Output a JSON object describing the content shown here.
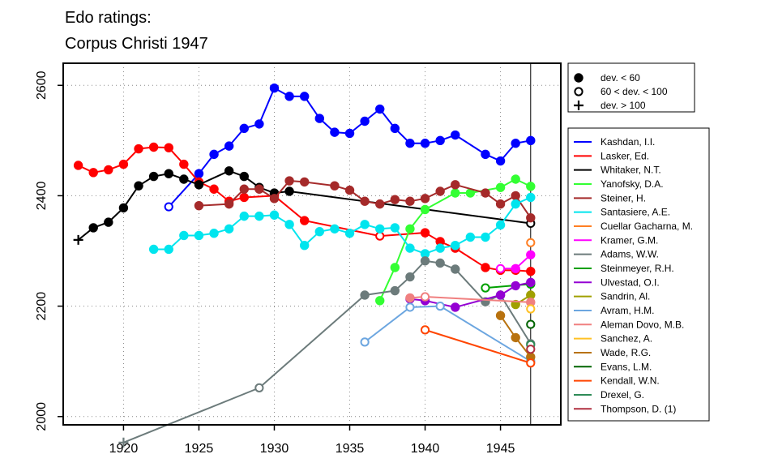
{
  "chart_data": {
    "type": "line",
    "title": [
      "Edo ratings:",
      "Corpus Christi 1947"
    ],
    "xlabel": "",
    "ylabel": "",
    "xlim": [
      1916,
      1949
    ],
    "ylim": [
      1985,
      2640
    ],
    "x_ticks": [
      1920,
      1925,
      1930,
      1935,
      1940,
      1945
    ],
    "y_ticks": [
      2000,
      2200,
      2400,
      2600
    ],
    "grid": true,
    "reference_line_x": 1947,
    "legend_placement": "right",
    "marker_legend": [
      {
        "marker": "filled",
        "label": "dev. < 60"
      },
      {
        "marker": "open",
        "label": "60 < dev. < 100"
      },
      {
        "marker": "plus",
        "label": "dev. > 100"
      }
    ],
    "series": [
      {
        "name": "Kashdan, I.I.",
        "color": "#0000ff",
        "points": [
          [
            1923,
            2380,
            "o"
          ],
          [
            1925,
            2440,
            "f"
          ],
          [
            1926,
            2475,
            "f"
          ],
          [
            1927,
            2490,
            "f"
          ],
          [
            1928,
            2522,
            "f"
          ],
          [
            1929,
            2530,
            "f"
          ],
          [
            1930,
            2595,
            "f"
          ],
          [
            1931,
            2580,
            "f"
          ],
          [
            1932,
            2580,
            "f"
          ],
          [
            1933,
            2540,
            "f"
          ],
          [
            1934,
            2515,
            "f"
          ],
          [
            1935,
            2513,
            "f"
          ],
          [
            1936,
            2535,
            "f"
          ],
          [
            1937,
            2557,
            "f"
          ],
          [
            1938,
            2522,
            "f"
          ],
          [
            1939,
            2495,
            "f"
          ],
          [
            1940,
            2495,
            "f"
          ],
          [
            1941,
            2500,
            "f"
          ],
          [
            1942,
            2510,
            "f"
          ],
          [
            1944,
            2475,
            "f"
          ],
          [
            1945,
            2463,
            "f"
          ],
          [
            1946,
            2495,
            "f"
          ],
          [
            1947,
            2500,
            "f"
          ]
        ]
      },
      {
        "name": "Lasker, Ed.",
        "color": "#ff0000",
        "points": [
          [
            1917,
            2455,
            "f"
          ],
          [
            1918,
            2442,
            "f"
          ],
          [
            1919,
            2447,
            "f"
          ],
          [
            1920,
            2457,
            "f"
          ],
          [
            1921,
            2485,
            "f"
          ],
          [
            1922,
            2488,
            "f"
          ],
          [
            1923,
            2487,
            "f"
          ],
          [
            1924,
            2457,
            "f"
          ],
          [
            1925,
            2425,
            "f"
          ],
          [
            1926,
            2412,
            "f"
          ],
          [
            1927,
            2390,
            "f"
          ],
          [
            1928,
            2397,
            "f"
          ],
          [
            1930,
            2400,
            "f"
          ],
          [
            1932,
            2355,
            "f"
          ],
          [
            1937,
            2327,
            "o"
          ],
          [
            1940,
            2333,
            "f"
          ],
          [
            1941,
            2317,
            "f"
          ],
          [
            1942,
            2305,
            "f"
          ],
          [
            1944,
            2270,
            "f"
          ],
          [
            1945,
            2265,
            "f"
          ],
          [
            1946,
            2265,
            "f"
          ],
          [
            1947,
            2263,
            "f"
          ]
        ]
      },
      {
        "name": "Whitaker, N.T.",
        "color": "#000000",
        "points": [
          [
            1917,
            2320,
            "n"
          ],
          [
            1918,
            2342,
            "f"
          ],
          [
            1919,
            2352,
            "f"
          ],
          [
            1920,
            2378,
            "f"
          ],
          [
            1921,
            2418,
            "f"
          ],
          [
            1922,
            2435,
            "f"
          ],
          [
            1923,
            2440,
            "f"
          ],
          [
            1924,
            2430,
            "f"
          ],
          [
            1925,
            2420,
            "f"
          ],
          [
            1927,
            2445,
            "f"
          ],
          [
            1928,
            2435,
            "f"
          ],
          [
            1929,
            2415,
            "f"
          ],
          [
            1930,
            2405,
            "f"
          ],
          [
            1931,
            2408,
            "f"
          ],
          [
            1947,
            2350,
            "o"
          ]
        ]
      },
      {
        "name": "Yanofsky, D.A.",
        "color": "#33ff33",
        "points": [
          [
            1937,
            2210,
            "f"
          ],
          [
            1938,
            2270,
            "f"
          ],
          [
            1939,
            2340,
            "f"
          ],
          [
            1940,
            2375,
            "f"
          ],
          [
            1942,
            2405,
            "f"
          ],
          [
            1943,
            2405,
            "f"
          ],
          [
            1945,
            2415,
            "f"
          ],
          [
            1946,
            2430,
            "f"
          ],
          [
            1947,
            2417,
            "f"
          ]
        ]
      },
      {
        "name": "Steiner, H.",
        "color": "#a52a2a",
        "points": [
          [
            1925,
            2382,
            "f"
          ],
          [
            1927,
            2385,
            "f"
          ],
          [
            1928,
            2412,
            "f"
          ],
          [
            1929,
            2412,
            "f"
          ],
          [
            1930,
            2395,
            "f"
          ],
          [
            1931,
            2427,
            "f"
          ],
          [
            1932,
            2425,
            "f"
          ],
          [
            1934,
            2418,
            "f"
          ],
          [
            1935,
            2410,
            "f"
          ],
          [
            1936,
            2390,
            "f"
          ],
          [
            1937,
            2385,
            "f"
          ],
          [
            1938,
            2393,
            "f"
          ],
          [
            1939,
            2390,
            "f"
          ],
          [
            1940,
            2395,
            "f"
          ],
          [
            1941,
            2408,
            "f"
          ],
          [
            1942,
            2420,
            "f"
          ],
          [
            1944,
            2405,
            "f"
          ],
          [
            1945,
            2385,
            "f"
          ],
          [
            1946,
            2400,
            "f"
          ],
          [
            1947,
            2360,
            "f"
          ]
        ]
      },
      {
        "name": "Santasiere, A.E.",
        "color": "#00e5ee",
        "points": [
          [
            1922,
            2303,
            "f"
          ],
          [
            1923,
            2303,
            "f"
          ],
          [
            1924,
            2328,
            "f"
          ],
          [
            1925,
            2328,
            "f"
          ],
          [
            1926,
            2332,
            "f"
          ],
          [
            1927,
            2340,
            "f"
          ],
          [
            1928,
            2363,
            "f"
          ],
          [
            1929,
            2363,
            "f"
          ],
          [
            1930,
            2365,
            "f"
          ],
          [
            1931,
            2348,
            "f"
          ],
          [
            1932,
            2310,
            "f"
          ],
          [
            1933,
            2335,
            "f"
          ],
          [
            1934,
            2340,
            "f"
          ],
          [
            1935,
            2332,
            "f"
          ],
          [
            1936,
            2348,
            "f"
          ],
          [
            1937,
            2340,
            "f"
          ],
          [
            1938,
            2342,
            "f"
          ],
          [
            1939,
            2305,
            "f"
          ],
          [
            1940,
            2295,
            "f"
          ],
          [
            1941,
            2305,
            "f"
          ],
          [
            1942,
            2310,
            "f"
          ],
          [
            1943,
            2325,
            "f"
          ],
          [
            1944,
            2325,
            "f"
          ],
          [
            1945,
            2347,
            "f"
          ],
          [
            1946,
            2385,
            "f"
          ],
          [
            1947,
            2397,
            "f"
          ]
        ]
      },
      {
        "name": "Cuellar Gacharna, M.",
        "color": "#ff7f24",
        "points": [
          [
            1947,
            2315,
            "o"
          ]
        ]
      },
      {
        "name": "Kramer, G.M.",
        "color": "#ff00ff",
        "points": [
          [
            1945,
            2268,
            "o"
          ],
          [
            1946,
            2268,
            "f"
          ],
          [
            1947,
            2293,
            "f"
          ]
        ]
      },
      {
        "name": "Adams, W.W.",
        "color": "#6c7b7b",
        "points": [
          [
            1920,
            1953,
            "n"
          ],
          [
            1929,
            2052,
            "o"
          ],
          [
            1936,
            2220,
            "f"
          ],
          [
            1938,
            2228,
            "f"
          ],
          [
            1939,
            2253,
            "f"
          ],
          [
            1940,
            2282,
            "f"
          ],
          [
            1941,
            2278,
            "f"
          ],
          [
            1942,
            2267,
            "f"
          ],
          [
            1944,
            2208,
            "f"
          ],
          [
            1945,
            2220,
            "f"
          ],
          [
            1947,
            2132,
            "o"
          ]
        ]
      },
      {
        "name": "Steinmeyer, R.H.",
        "color": "#00a000",
        "points": [
          [
            1944,
            2233,
            "o"
          ],
          [
            1947,
            2240,
            "f"
          ]
        ]
      },
      {
        "name": "Ulvestad, O.I.",
        "color": "#9400d3",
        "points": [
          [
            1939,
            2213,
            "f"
          ],
          [
            1940,
            2210,
            "f"
          ],
          [
            1942,
            2198,
            "f"
          ],
          [
            1945,
            2220,
            "f"
          ],
          [
            1946,
            2237,
            "f"
          ],
          [
            1947,
            2243,
            "f"
          ]
        ]
      },
      {
        "name": "Sandrin, Al.",
        "color": "#a0a000",
        "points": [
          [
            1946,
            2203,
            "f"
          ],
          [
            1947,
            2220,
            "f"
          ]
        ]
      },
      {
        "name": "Avram, H.M.",
        "color": "#6ca6e0",
        "points": [
          [
            1936,
            2135,
            "o"
          ],
          [
            1939,
            2198,
            "o"
          ],
          [
            1941,
            2200,
            "o"
          ],
          [
            1947,
            2100,
            "f"
          ]
        ]
      },
      {
        "name": "Aleman Dovo, M.B.",
        "color": "#f08080",
        "points": [
          [
            1939,
            2215,
            "f"
          ],
          [
            1940,
            2217,
            "o"
          ],
          [
            1947,
            2207,
            "f"
          ]
        ]
      },
      {
        "name": "Sanchez, A.",
        "color": "#ffc125",
        "points": [
          [
            1947,
            2195,
            "o"
          ]
        ]
      },
      {
        "name": "Wade, R.G.",
        "color": "#b8720f",
        "points": [
          [
            1945,
            2183,
            "f"
          ],
          [
            1946,
            2143,
            "f"
          ],
          [
            1947,
            2108,
            "f"
          ]
        ]
      },
      {
        "name": "Evans, L.M.",
        "color": "#006400",
        "points": [
          [
            1947,
            2167,
            "o"
          ]
        ]
      },
      {
        "name": "Kendall, W.N.",
        "color": "#ff4500",
        "points": [
          [
            1940,
            2157,
            "o"
          ],
          [
            1947,
            2097,
            "o"
          ]
        ]
      },
      {
        "name": "Drexel, G.",
        "color": "#2e8b57",
        "points": [
          [
            1947,
            2130,
            "o"
          ]
        ]
      },
      {
        "name": "Thompson, D. (1)",
        "color": "#b03040",
        "points": [
          [
            1947,
            2122,
            "o"
          ]
        ]
      }
    ]
  }
}
